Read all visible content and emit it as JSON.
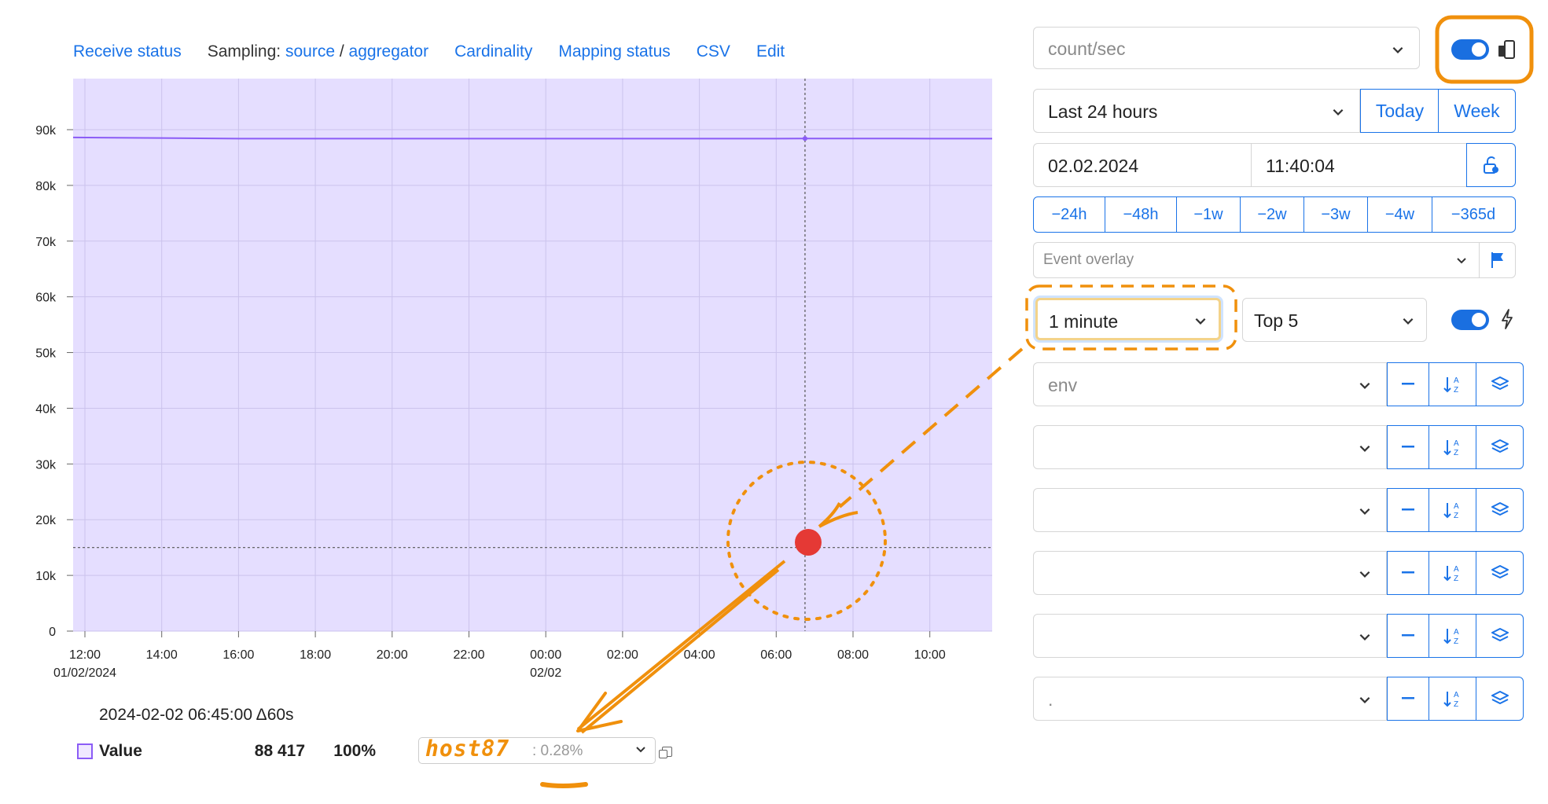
{
  "toplinks": {
    "receive_status": "Receive status",
    "sampling_label": "Sampling:",
    "source": "source",
    "slash": "/",
    "aggregator": "aggregator",
    "cardinality": "Cardinality",
    "mapping_status": "Mapping status",
    "csv": "CSV",
    "edit": "Edit"
  },
  "chart_data": {
    "type": "area",
    "series": [
      {
        "name": "Value",
        "color": "#8b5cf6",
        "fill": "#e5deff",
        "x": [
          "12:00",
          "14:00",
          "16:00",
          "18:00",
          "20:00",
          "22:00",
          "00:00",
          "02:00",
          "04:00",
          "06:00",
          "08:00",
          "10:00",
          "11:40"
        ],
        "values": [
          88600,
          88500,
          88400,
          88400,
          88400,
          88400,
          88400,
          88400,
          88400,
          88400,
          88417,
          88400,
          88400
        ]
      }
    ],
    "x_ticks": [
      "12:00",
      "14:00",
      "16:00",
      "18:00",
      "20:00",
      "22:00",
      "00:00",
      "02:00",
      "04:00",
      "06:00",
      "08:00",
      "10:00"
    ],
    "x_subticks": {
      "0": "01/02/2024",
      "6": "02/02"
    },
    "y_ticks": [
      "0",
      "10k",
      "20k",
      "30k",
      "40k",
      "50k",
      "60k",
      "70k",
      "80k",
      "90k"
    ],
    "ylim": [
      0,
      90000
    ],
    "grid": true,
    "cursor_x": "06:45",
    "cursor_y": 15000
  },
  "legend": {
    "datetime": "2024-02-02 06:45:00  Δ60s",
    "series_name": "Value",
    "series_value": "88 417",
    "series_percent": "100%",
    "host_name": "host87",
    "host_percent": ": 0.28%"
  },
  "panel": {
    "unit_placeholder": "count/sec",
    "time_range": "Last 24 hours",
    "today": "Today",
    "week": "Week",
    "date": "02.02.2024",
    "time": "11:40:04",
    "shifts": [
      "−24h",
      "−48h",
      "−1w",
      "−2w",
      "−3w",
      "−4w",
      "−365d"
    ],
    "event_overlay_placeholder": "Event overlay",
    "resolution": "1 minute",
    "top_n": "Top 5",
    "tag_rows": [
      "env",
      "",
      "",
      "",
      "",
      "."
    ],
    "accent_color": "#1a73e8",
    "annotation_color": "#f0900c",
    "highlight_dot_color": "#e53935"
  }
}
